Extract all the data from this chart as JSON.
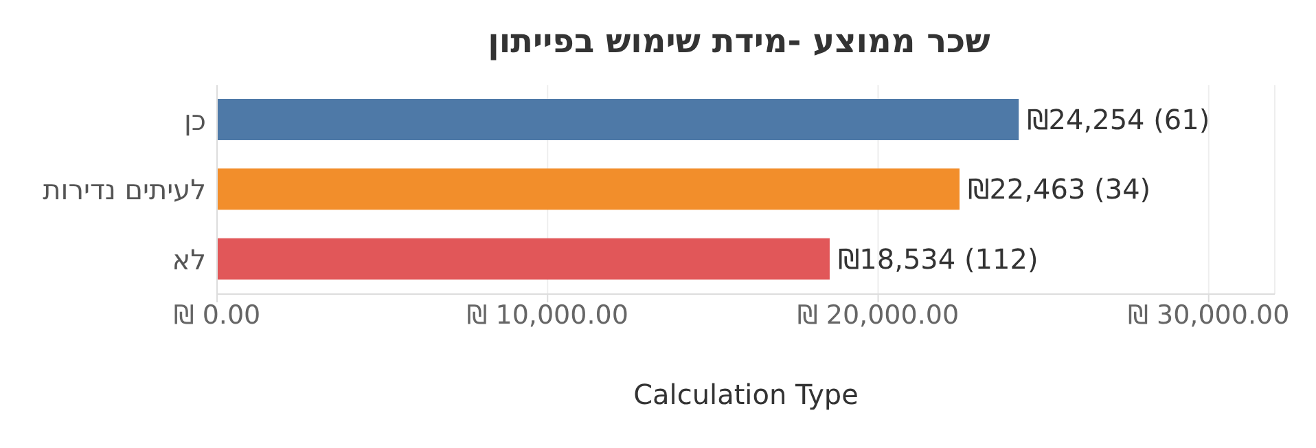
{
  "chart_data": {
    "type": "bar",
    "orientation": "horizontal",
    "title": "שכר ממוצע -מידת שימוש בפייתון",
    "xlabel": "Calculation Type",
    "categories": [
      "כן",
      "לעיתים נדירות",
      "לא"
    ],
    "values": [
      24254,
      22463,
      18534
    ],
    "colors": [
      "#4e79a7",
      "#f28e2b",
      "#e15759"
    ],
    "value_labels": [
      "₪24,254 (61)",
      "₪22,463 (34)",
      "₪18,534 (112)"
    ],
    "xlim": [
      0,
      32000
    ],
    "xticks": [
      {
        "value": 0,
        "label": "₪ 0.00"
      },
      {
        "value": 10000,
        "label": "₪ 10,000.00"
      },
      {
        "value": 20000,
        "label": "₪ 20,000.00"
      },
      {
        "value": 30000,
        "label": "₪ 30,000.00"
      }
    ],
    "grid": "x",
    "legend": false
  }
}
